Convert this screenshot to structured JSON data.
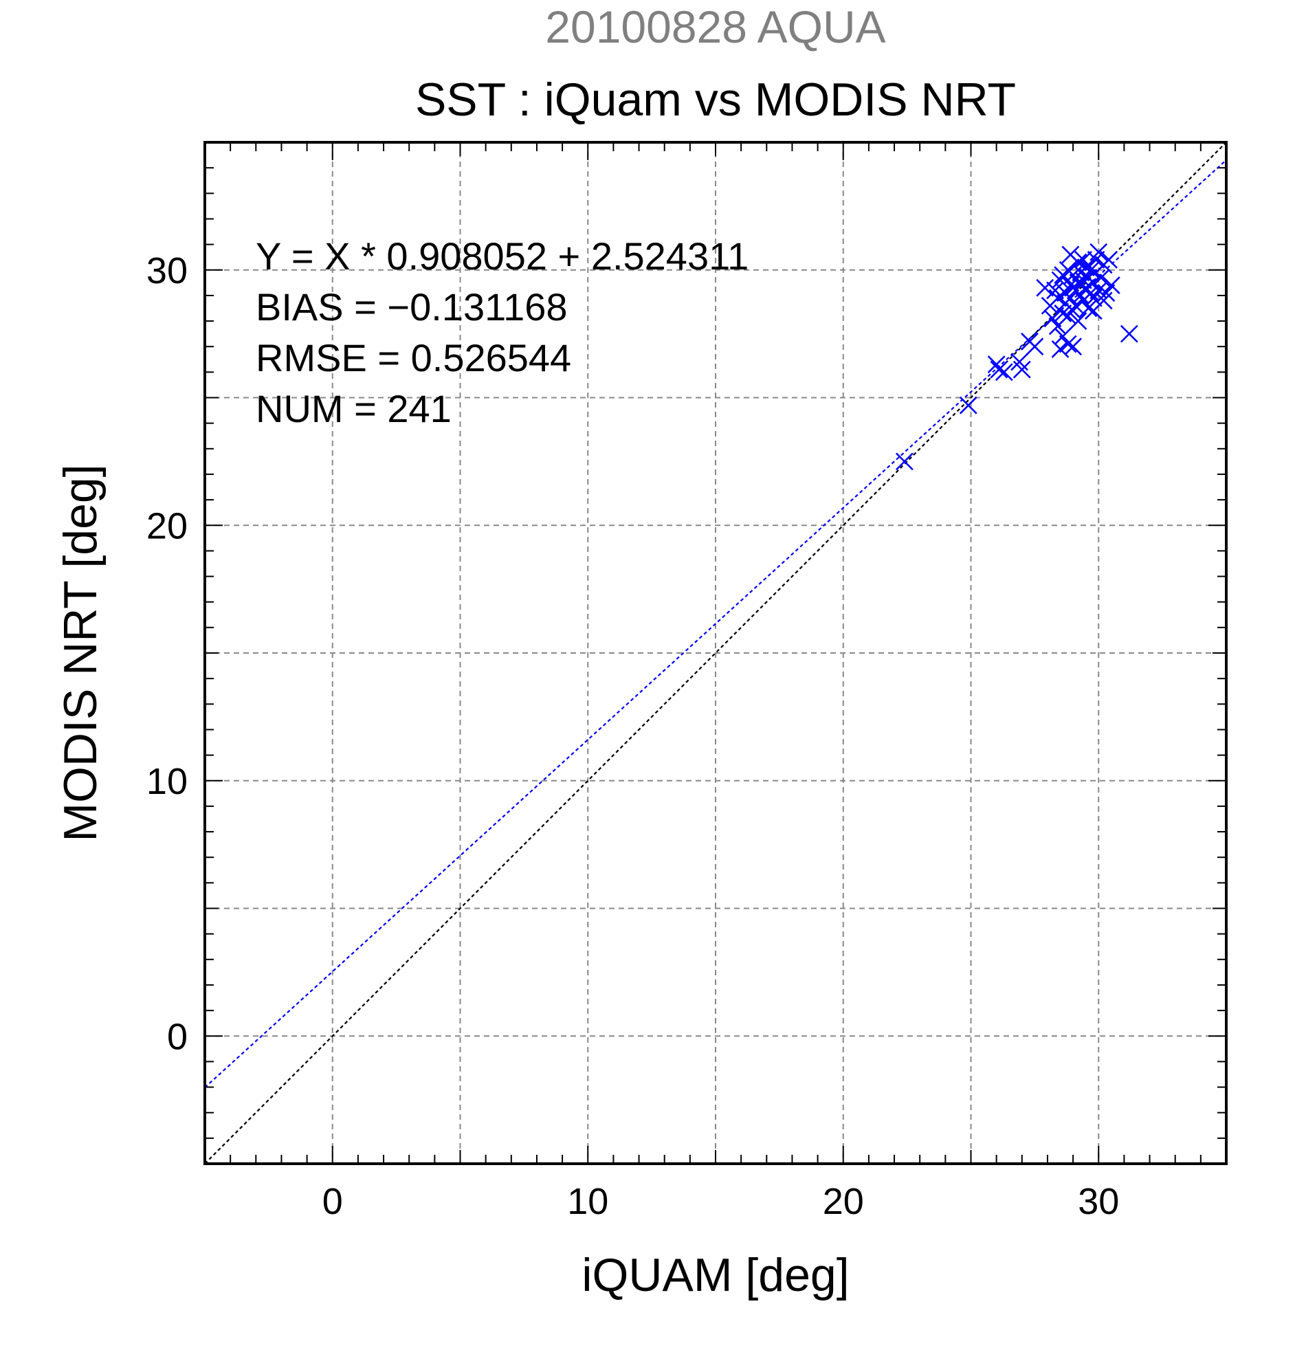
{
  "chart_data": {
    "type": "scatter",
    "supertitle": "20100828 AQUA",
    "title": "SST : iQuam vs MODIS NRT",
    "xlabel": "iQUAM [deg]",
    "ylabel": "MODIS NRT [deg]",
    "xlim": [
      -5,
      35
    ],
    "ylim": [
      -5,
      35
    ],
    "major_ticks": [
      0,
      10,
      20,
      30
    ],
    "tick_labels": [
      "0",
      "10",
      "20",
      "30"
    ],
    "minor_step": 1,
    "grid": true,
    "grid_step": 5,
    "stats": [
      "Y = X * 0.908052 + 2.524311",
      "BIAS = −0.131168",
      "RMSE = 0.526544",
      "NUM = 241"
    ],
    "fit_line": {
      "slope": 0.908052,
      "intercept": 2.524311,
      "color": "#0000ff"
    },
    "identity_line": {
      "slope": 1,
      "intercept": 0,
      "color": "#000000"
    },
    "marker_color": "#0000ff",
    "points": [
      [
        22.4,
        22.5
      ],
      [
        24.9,
        24.7
      ],
      [
        26.0,
        26.3
      ],
      [
        26.1,
        26.1
      ],
      [
        26.3,
        26.0
      ],
      [
        26.9,
        26.4
      ],
      [
        27.0,
        26.1
      ],
      [
        27.3,
        27.2
      ],
      [
        27.5,
        27.0
      ],
      [
        27.9,
        29.3
      ],
      [
        28.1,
        28.6
      ],
      [
        28.2,
        28.1
      ],
      [
        28.3,
        29.2
      ],
      [
        28.4,
        28.9
      ],
      [
        28.4,
        27.8
      ],
      [
        28.5,
        26.9
      ],
      [
        28.5,
        29.6
      ],
      [
        28.6,
        28.3
      ],
      [
        28.6,
        27.4
      ],
      [
        28.7,
        29.1
      ],
      [
        28.7,
        28.7
      ],
      [
        28.8,
        30.0
      ],
      [
        28.8,
        28.2
      ],
      [
        28.8,
        27.1
      ],
      [
        28.9,
        29.4
      ],
      [
        28.9,
        28.9
      ],
      [
        28.9,
        30.6
      ],
      [
        29.0,
        28.4
      ],
      [
        29.0,
        29.8
      ],
      [
        29.0,
        27.0
      ],
      [
        29.1,
        29.2
      ],
      [
        29.1,
        28.6
      ],
      [
        29.2,
        29.5
      ],
      [
        29.2,
        30.3
      ],
      [
        29.2,
        28.0
      ],
      [
        29.3,
        29.0
      ],
      [
        29.3,
        29.9
      ],
      [
        29.4,
        28.8
      ],
      [
        29.4,
        29.6
      ],
      [
        29.5,
        30.1
      ],
      [
        29.5,
        29.3
      ],
      [
        29.6,
        28.5
      ],
      [
        29.6,
        29.7
      ],
      [
        29.7,
        29.1
      ],
      [
        29.7,
        30.0
      ],
      [
        29.8,
        28.9
      ],
      [
        29.8,
        29.5
      ],
      [
        29.9,
        30.4
      ],
      [
        30.0,
        29.2
      ],
      [
        30.0,
        30.7
      ],
      [
        30.1,
        29.7
      ],
      [
        30.2,
        30.2
      ],
      [
        30.3,
        29.1
      ],
      [
        30.4,
        30.4
      ],
      [
        30.5,
        29.4
      ],
      [
        28.6,
        29.8
      ],
      [
        29.0,
        29.3
      ],
      [
        29.4,
        30.4
      ],
      [
        29.8,
        28.4
      ],
      [
        30.2,
        28.8
      ],
      [
        31.2,
        27.5
      ]
    ]
  }
}
